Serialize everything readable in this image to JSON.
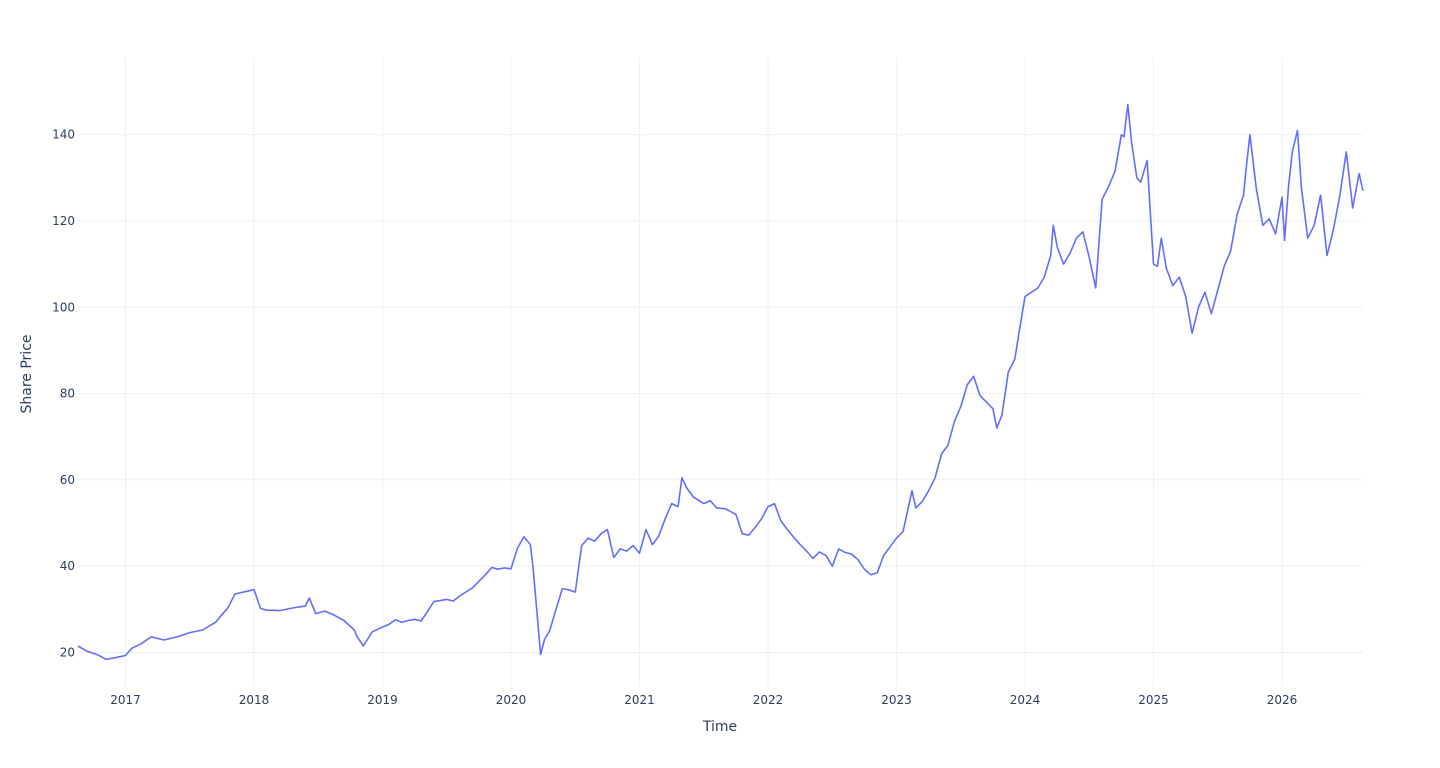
{
  "chart_data": {
    "type": "line",
    "title": "",
    "xlabel": "Time",
    "ylabel": "Share Price",
    "xlim": [
      2016.63,
      2026.63
    ],
    "ylim": [
      12,
      158
    ],
    "x_ticks": [
      2017,
      2018,
      2019,
      2020,
      2021,
      2022,
      2023,
      2024,
      2025,
      2026
    ],
    "x_tick_labels": [
      "2017",
      "2018",
      "2019",
      "2020",
      "2021",
      "2022",
      "2023",
      "2024",
      "2025",
      "2026"
    ],
    "y_ticks": [
      20,
      40,
      60,
      80,
      100,
      120,
      140
    ],
    "y_tick_labels": [
      "20",
      "40",
      "60",
      "80",
      "100",
      "120",
      "140"
    ],
    "grid": true,
    "legend": "none",
    "series": [
      {
        "color": "#636efa",
        "x": [
          2016.63,
          2016.7,
          2016.78,
          2016.85,
          2016.92,
          2017.0,
          2017.05,
          2017.12,
          2017.2,
          2017.3,
          2017.4,
          2017.5,
          2017.6,
          2017.7,
          2017.8,
          2017.85,
          2017.9,
          2017.95,
          2018.0,
          2018.05,
          2018.1,
          2018.2,
          2018.3,
          2018.4,
          2018.43,
          2018.48,
          2018.55,
          2018.62,
          2018.7,
          2018.78,
          2018.8,
          2018.85,
          2018.92,
          2019.0,
          2019.05,
          2019.1,
          2019.15,
          2019.2,
          2019.25,
          2019.3,
          2019.35,
          2019.4,
          2019.5,
          2019.55,
          2019.6,
          2019.7,
          2019.75,
          2019.8,
          2019.85,
          2019.9,
          2019.95,
          2020.0,
          2020.05,
          2020.1,
          2020.15,
          2020.17,
          2020.2,
          2020.23,
          2020.26,
          2020.3,
          2020.35,
          2020.4,
          2020.45,
          2020.5,
          2020.55,
          2020.6,
          2020.65,
          2020.7,
          2020.75,
          2020.8,
          2020.85,
          2020.9,
          2020.95,
          2021.0,
          2021.05,
          2021.1,
          2021.15,
          2021.2,
          2021.25,
          2021.3,
          2021.33,
          2021.37,
          2021.42,
          2021.5,
          2021.55,
          2021.6,
          2021.67,
          2021.75,
          2021.8,
          2021.85,
          2021.9,
          2021.95,
          2022.0,
          2022.05,
          2022.1,
          2022.15,
          2022.2,
          2022.25,
          2022.3,
          2022.35,
          2022.4,
          2022.45,
          2022.5,
          2022.55,
          2022.6,
          2022.65,
          2022.7,
          2022.75,
          2022.8,
          2022.85,
          2022.9,
          2022.95,
          2023.0,
          2023.05,
          2023.08,
          2023.12,
          2023.15,
          2023.2,
          2023.25,
          2023.3,
          2023.35,
          2023.4,
          2023.45,
          2023.5,
          2023.55,
          2023.6,
          2023.65,
          2023.7,
          2023.75,
          2023.78,
          2023.82,
          2023.87,
          2023.92,
          2023.95,
          2024.0,
          2024.05,
          2024.1,
          2024.15,
          2024.2,
          2024.22,
          2024.25,
          2024.3,
          2024.35,
          2024.4,
          2024.45,
          2024.5,
          2024.55,
          2024.6,
          2024.65,
          2024.7,
          2024.75,
          2024.77,
          2024.8,
          2024.83,
          2024.87,
          2024.9,
          2024.95,
          2025.0,
          2025.03,
          2025.06,
          2025.1,
          2025.15,
          2025.2,
          2025.25,
          2025.3,
          2025.35,
          2025.4,
          2025.45,
          2025.5,
          2025.55,
          2025.6,
          2025.65,
          2025.7,
          2025.72,
          2025.75,
          2025.8,
          2025.85,
          2025.9,
          2025.95,
          2026.0,
          2026.02,
          2026.05,
          2026.08,
          2026.12,
          2026.15,
          2026.2,
          2026.25,
          2026.3,
          2026.35,
          2026.4,
          2026.45,
          2026.5,
          2026.55,
          2026.6,
          2026.63
        ],
        "values": [
          21.5,
          20.3,
          19.5,
          18.4,
          18.8,
          19.3,
          21.0,
          22.0,
          23.6,
          22.9,
          23.6,
          24.6,
          25.2,
          27.0,
          30.5,
          33.5,
          33.9,
          34.2,
          34.6,
          30.2,
          29.8,
          29.7,
          30.3,
          30.8,
          32.6,
          29.0,
          29.6,
          28.7,
          27.4,
          25.2,
          23.8,
          21.5,
          24.8,
          25.9,
          26.5,
          27.6,
          27.0,
          27.4,
          27.7,
          27.3,
          29.5,
          31.8,
          32.3,
          31.9,
          33.1,
          35.0,
          36.5,
          38.0,
          39.7,
          39.3,
          39.6,
          39.4,
          44.2,
          46.8,
          45.0,
          40.0,
          30.0,
          19.5,
          23.0,
          25.0,
          30.0,
          34.8,
          34.5,
          34.0,
          44.8,
          46.5,
          45.8,
          47.5,
          48.5,
          42.0,
          44.0,
          43.5,
          44.8,
          43.0,
          48.5,
          45.0,
          47.0,
          51.0,
          54.5,
          53.8,
          60.5,
          58.0,
          56.0,
          54.5,
          55.2,
          53.5,
          53.3,
          52.0,
          47.5,
          47.2,
          49.0,
          51.0,
          53.8,
          54.5,
          50.5,
          48.5,
          46.7,
          45.0,
          43.5,
          41.8,
          43.3,
          42.5,
          40.0,
          44.0,
          43.2,
          42.8,
          41.5,
          39.3,
          38.0,
          38.5,
          42.5,
          44.5,
          46.5,
          48.0,
          52.0,
          57.5,
          53.5,
          55.0,
          57.5,
          60.5,
          66.0,
          68.0,
          73.5,
          77.0,
          82.0,
          84.0,
          79.5,
          78.0,
          76.5,
          72.0,
          75.0,
          85.0,
          88.0,
          93.5,
          102.5,
          103.5,
          104.5,
          107.0,
          112.0,
          119.0,
          114.0,
          110.0,
          112.5,
          116.0,
          117.5,
          111.5,
          104.5,
          125.0,
          128.0,
          131.5,
          140.0,
          139.5,
          147.0,
          138.0,
          130.0,
          129.0,
          134.0,
          110.0,
          109.5,
          116.0,
          109.0,
          105.0,
          107.0,
          102.5,
          94.0,
          100.0,
          103.5,
          98.5,
          104.0,
          109.5,
          113.0,
          121.5,
          126.0,
          132.0,
          140.0,
          127.5,
          119.0,
          120.5,
          117.0,
          125.5,
          115.5,
          128.0,
          136.0,
          141.0,
          128.0,
          116.0,
          119.0,
          126.0,
          112.0,
          118.0,
          126.0,
          136.0,
          123.0,
          131.0,
          127.0
        ]
      }
    ]
  }
}
